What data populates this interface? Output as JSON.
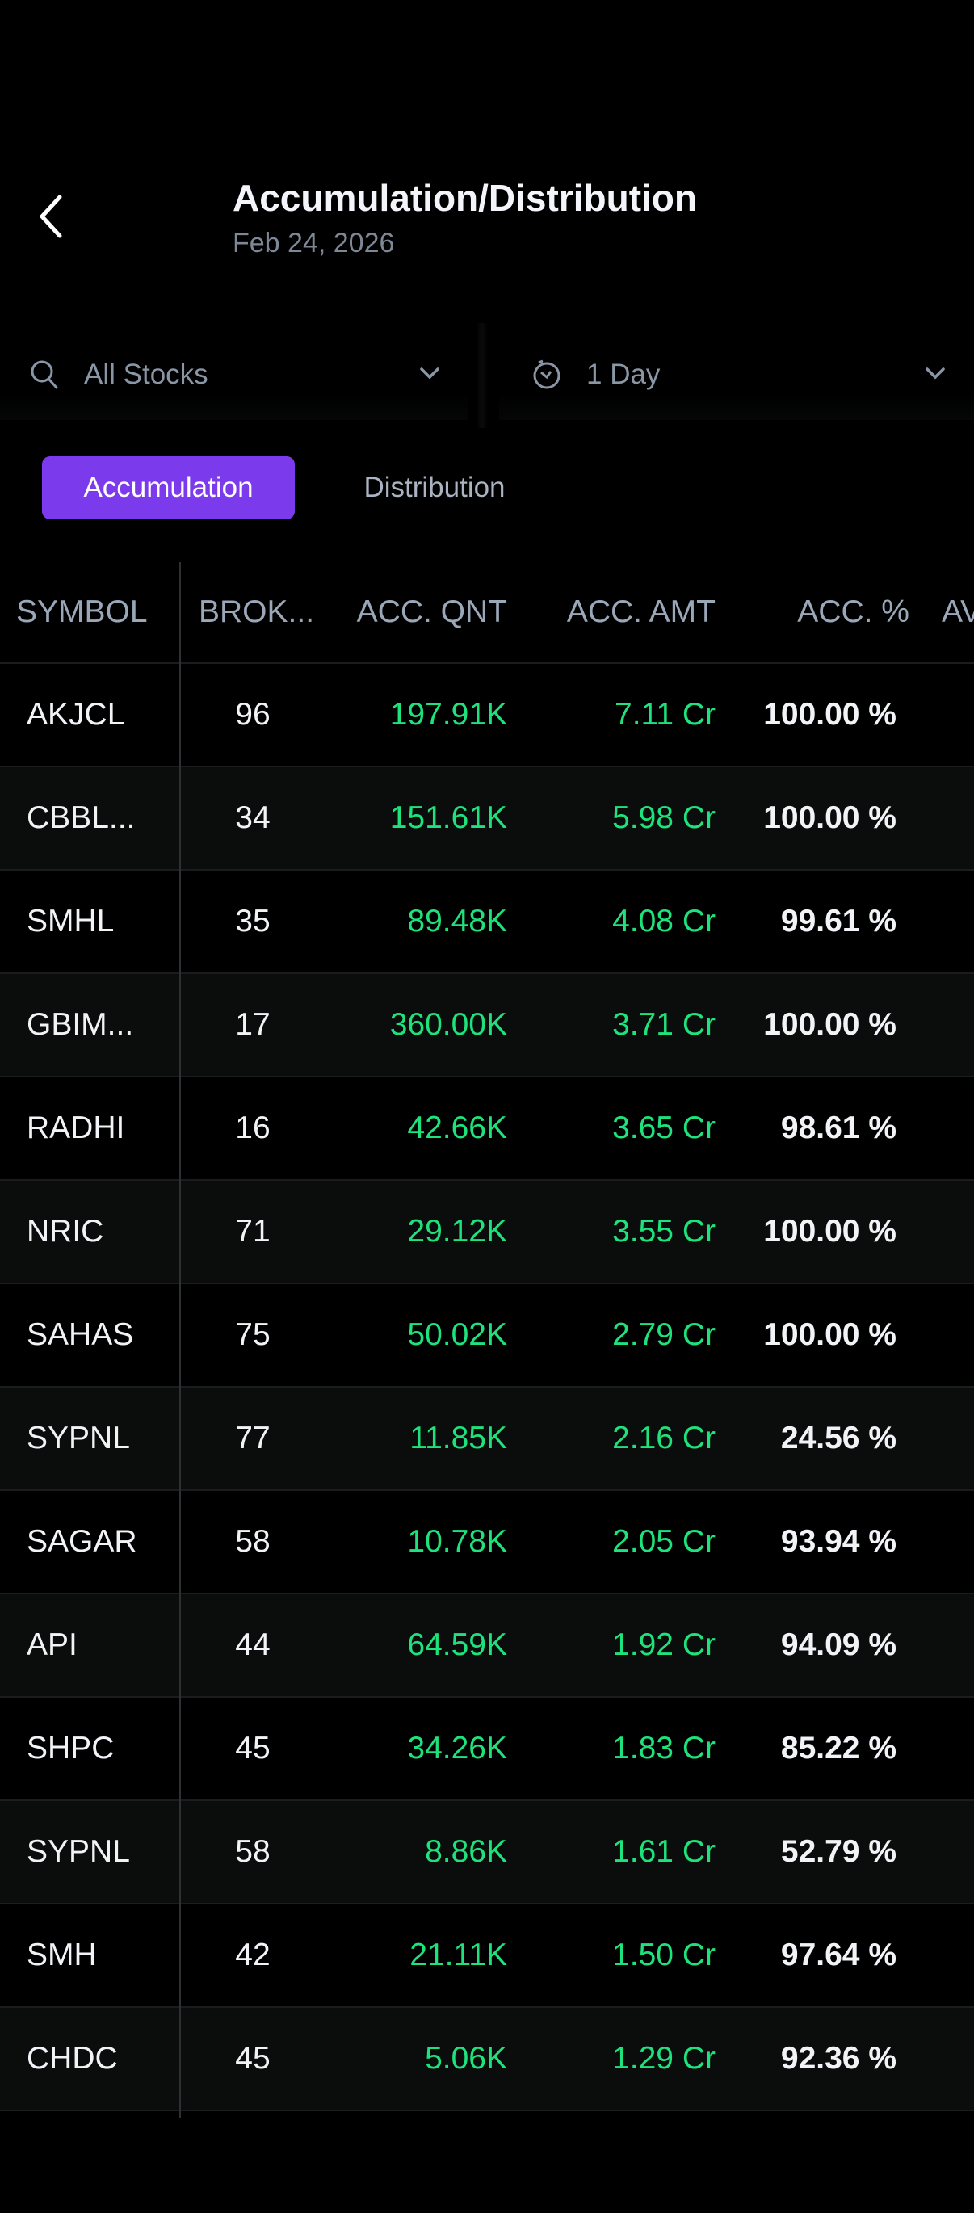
{
  "header": {
    "title": "Accumulation/Distribution",
    "date": "Feb 24, 2026"
  },
  "filters": {
    "stocks": "All Stocks",
    "period": "1 Day"
  },
  "tabs": [
    {
      "label": "Accumulation",
      "active": true
    },
    {
      "label": "Distribution",
      "active": false
    }
  ],
  "colors": {
    "accent": "#7c3aed",
    "positive": "#1ee27b"
  },
  "table": {
    "headers": [
      "SYMBOL",
      "BROK...",
      "ACC. QNT",
      "ACC. AMT",
      "ACC. %",
      "AV"
    ],
    "rows": [
      [
        "AKJCL",
        "96",
        "197.91K",
        "7.11 Cr",
        "100.00 %"
      ],
      [
        "CBBL...",
        "34",
        "151.61K",
        "5.98 Cr",
        "100.00 %"
      ],
      [
        "SMHL",
        "35",
        "89.48K",
        "4.08 Cr",
        "99.61 %"
      ],
      [
        "GBIM...",
        "17",
        "360.00K",
        "3.71 Cr",
        "100.00 %"
      ],
      [
        "RADHI",
        "16",
        "42.66K",
        "3.65 Cr",
        "98.61 %"
      ],
      [
        "NRIC",
        "71",
        "29.12K",
        "3.55 Cr",
        "100.00 %"
      ],
      [
        "SAHAS",
        "75",
        "50.02K",
        "2.79 Cr",
        "100.00 %"
      ],
      [
        "SYPNL",
        "77",
        "11.85K",
        "2.16 Cr",
        "24.56 %"
      ],
      [
        "SAGAR",
        "58",
        "10.78K",
        "2.05 Cr",
        "93.94 %"
      ],
      [
        "API",
        "44",
        "64.59K",
        "1.92 Cr",
        "94.09 %"
      ],
      [
        "SHPC",
        "45",
        "34.26K",
        "1.83 Cr",
        "85.22 %"
      ],
      [
        "SYPNL",
        "58",
        "8.86K",
        "1.61 Cr",
        "52.79 %"
      ],
      [
        "SMH",
        "42",
        "21.11K",
        "1.50 Cr",
        "97.64 %"
      ],
      [
        "CHDC",
        "45",
        "5.06K",
        "1.29 Cr",
        "92.36 %"
      ]
    ]
  }
}
